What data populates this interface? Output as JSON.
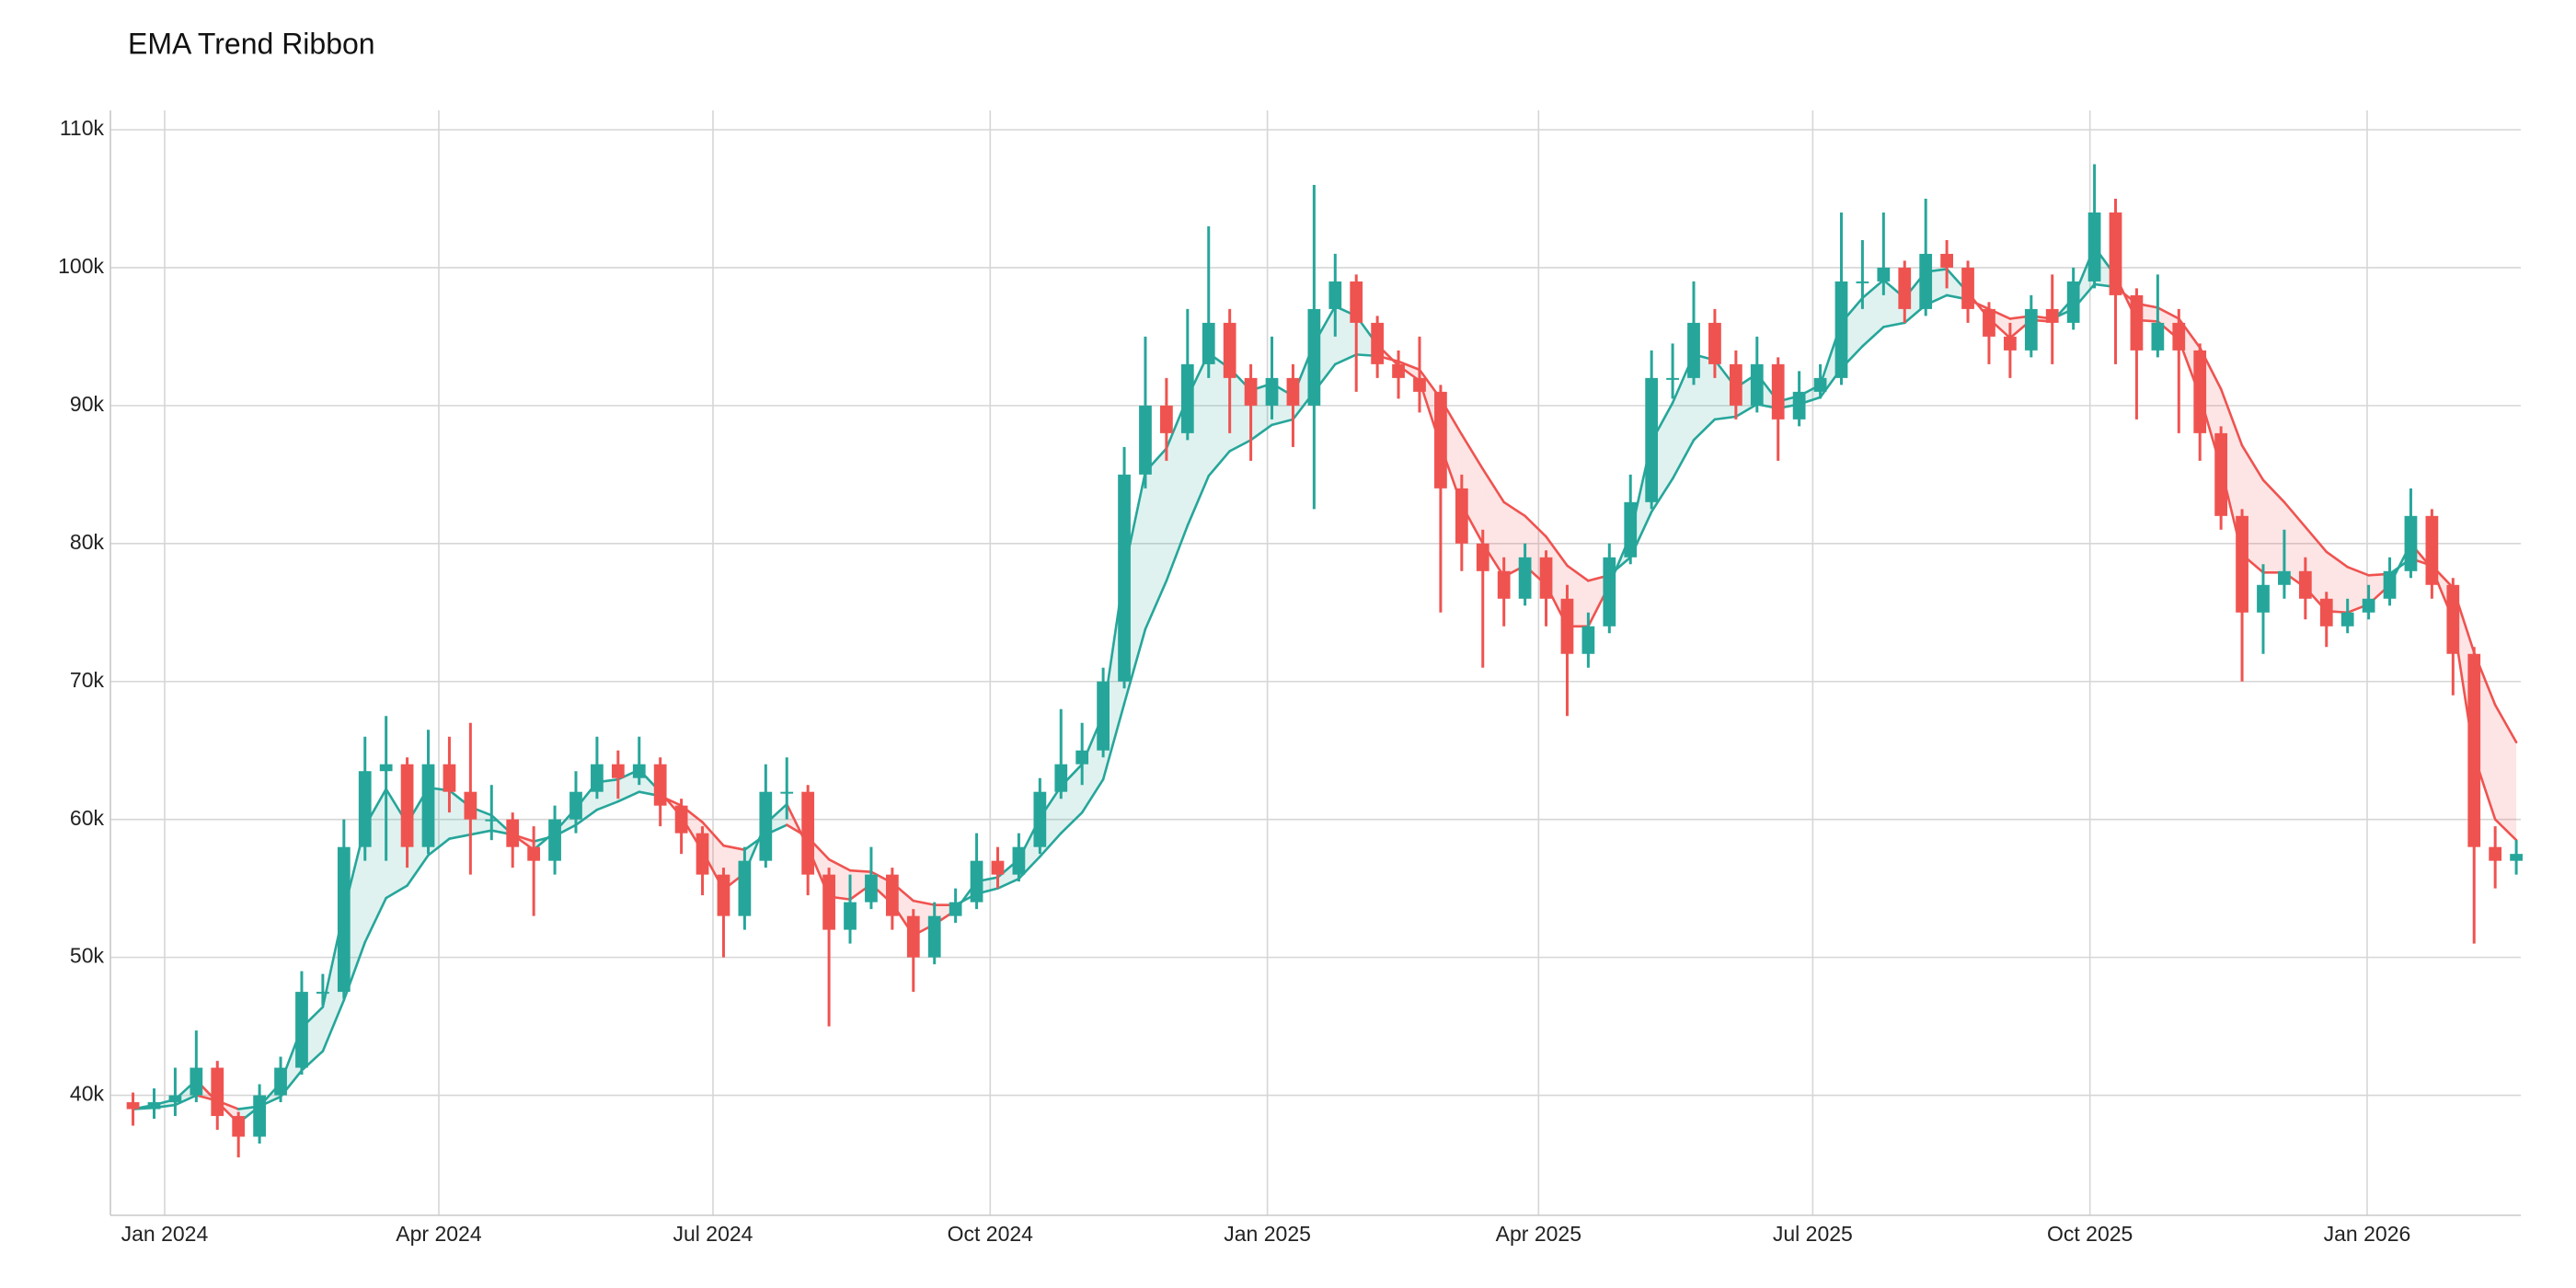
{
  "chart_data": {
    "type": "candlestick",
    "title": "EMA Trend Ribbon",
    "x": [
      "2023-12-18",
      "2023-12-25",
      "2024-01-01",
      "2024-01-08",
      "2024-01-15",
      "2024-01-22",
      "2024-01-29",
      "2024-02-05",
      "2024-02-12",
      "2024-02-19",
      "2024-02-26",
      "2024-03-04",
      "2024-03-11",
      "2024-03-18",
      "2024-03-25",
      "2024-04-01",
      "2024-04-08",
      "2024-04-15",
      "2024-04-22",
      "2024-04-29",
      "2024-05-06",
      "2024-05-13",
      "2024-05-20",
      "2024-05-27",
      "2024-06-03",
      "2024-06-10",
      "2024-06-17",
      "2024-06-24",
      "2024-07-01",
      "2024-07-08",
      "2024-07-15",
      "2024-07-22",
      "2024-07-29",
      "2024-08-05",
      "2024-08-12",
      "2024-08-19",
      "2024-08-26",
      "2024-09-02",
      "2024-09-09",
      "2024-09-16",
      "2024-09-23",
      "2024-09-30",
      "2024-10-07",
      "2024-10-14",
      "2024-10-21",
      "2024-10-28",
      "2024-11-04",
      "2024-11-11",
      "2024-11-18",
      "2024-11-25",
      "2024-12-02",
      "2024-12-09",
      "2024-12-16",
      "2024-12-23",
      "2024-12-30",
      "2025-01-06",
      "2025-01-13",
      "2025-01-20",
      "2025-01-27",
      "2025-02-03",
      "2025-02-10",
      "2025-02-17",
      "2025-02-24",
      "2025-03-03",
      "2025-03-10",
      "2025-03-17",
      "2025-03-24",
      "2025-03-31",
      "2025-04-07",
      "2025-04-14",
      "2025-04-21",
      "2025-04-28",
      "2025-05-05",
      "2025-05-12",
      "2025-05-19",
      "2025-05-26",
      "2025-06-02",
      "2025-06-09",
      "2025-06-16",
      "2025-06-23",
      "2025-06-30",
      "2025-07-07",
      "2025-07-14",
      "2025-07-21",
      "2025-07-28",
      "2025-08-04",
      "2025-08-11",
      "2025-08-18",
      "2025-08-25",
      "2025-09-01",
      "2025-09-08",
      "2025-09-15",
      "2025-09-22",
      "2025-09-29",
      "2025-10-06",
      "2025-10-13",
      "2025-10-20",
      "2025-10-27",
      "2025-11-03",
      "2025-11-10",
      "2025-11-17",
      "2025-11-24",
      "2025-12-01",
      "2025-12-08",
      "2025-12-15",
      "2025-12-22",
      "2025-12-29",
      "2026-01-05",
      "2026-01-12",
      "2026-01-19",
      "2026-01-26",
      "2026-02-02",
      "2026-02-09",
      "2026-02-16"
    ],
    "open": [
      39500,
      39000,
      39500,
      40000,
      42000,
      38500,
      37000,
      40000,
      42000,
      47500,
      47500,
      58000,
      63500,
      64000,
      58000,
      64000,
      62000,
      60000,
      60000,
      58000,
      57000,
      60000,
      62000,
      64000,
      63000,
      64000,
      61000,
      59000,
      56000,
      53000,
      57000,
      62000,
      62000,
      56000,
      52000,
      54000,
      56000,
      53000,
      50000,
      53000,
      54000,
      57000,
      56000,
      58000,
      62000,
      64000,
      65000,
      70000,
      85000,
      90000,
      88000,
      93000,
      96000,
      92000,
      90000,
      92000,
      90000,
      97000,
      99000,
      96000,
      93000,
      92000,
      91000,
      84000,
      80000,
      78000,
      76000,
      79000,
      76000,
      72000,
      74000,
      79000,
      83000,
      92000,
      92000,
      96000,
      93000,
      90000,
      93000,
      89000,
      91000,
      92000,
      99000,
      99000,
      100000,
      97000,
      101000,
      100000,
      97000,
      95000,
      94000,
      97000,
      96000,
      99000,
      104000,
      98000,
      94000,
      96000,
      94000,
      88000,
      82000,
      75000,
      77000,
      78000,
      76000,
      74000,
      75000,
      76000,
      78000,
      82000,
      77000,
      72000,
      58000,
      57000
    ],
    "high": [
      40200,
      40500,
      42000,
      44700,
      42500,
      38800,
      40800,
      42800,
      49000,
      48800,
      60000,
      66000,
      67500,
      64500,
      66500,
      66000,
      67000,
      62500,
      60500,
      59500,
      61000,
      63500,
      66000,
      65000,
      66000,
      64500,
      61500,
      59500,
      56500,
      58000,
      64000,
      64500,
      62500,
      56500,
      56000,
      58000,
      56500,
      53500,
      54000,
      55000,
      59000,
      58000,
      59000,
      63000,
      68000,
      67000,
      71000,
      87000,
      95000,
      92000,
      97000,
      103000,
      97000,
      93000,
      95000,
      93000,
      106000,
      101000,
      99500,
      96500,
      94000,
      95000,
      91500,
      85000,
      81000,
      79000,
      80000,
      79500,
      77000,
      75000,
      80000,
      85000,
      94000,
      94500,
      99000,
      97000,
      94000,
      95000,
      93500,
      92500,
      93000,
      104000,
      102000,
      104000,
      100500,
      105000,
      102000,
      100500,
      97500,
      96000,
      98000,
      99500,
      100000,
      107500,
      105000,
      98500,
      99500,
      97000,
      94500,
      88500,
      82500,
      78500,
      81000,
      79000,
      76500,
      76000,
      77000,
      79000,
      84000,
      82500,
      77500,
      72500,
      59500,
      58500
    ],
    "low": [
      37800,
      38300,
      38500,
      39500,
      37500,
      35500,
      36500,
      39500,
      41500,
      46500,
      47000,
      57000,
      57000,
      56500,
      57500,
      60500,
      56000,
      58500,
      56500,
      53000,
      56000,
      59000,
      61500,
      61500,
      62500,
      59500,
      57500,
      54500,
      50000,
      52000,
      56500,
      60000,
      54500,
      45000,
      51000,
      53500,
      52000,
      47500,
      49500,
      52500,
      53500,
      55000,
      55500,
      57500,
      61500,
      62500,
      64500,
      69500,
      84000,
      86000,
      87500,
      92000,
      88000,
      86000,
      89000,
      87000,
      82500,
      95000,
      91000,
      92000,
      90500,
      89500,
      75000,
      78000,
      71000,
      74000,
      75500,
      74000,
      67500,
      71000,
      73500,
      78500,
      82500,
      90500,
      91500,
      92000,
      89000,
      89500,
      86000,
      88500,
      90500,
      91500,
      97000,
      98000,
      96000,
      96500,
      98500,
      96000,
      93000,
      92000,
      93500,
      93000,
      95500,
      98500,
      93000,
      89000,
      93500,
      88000,
      86000,
      81000,
      70000,
      72000,
      76000,
      74500,
      72500,
      73500,
      74500,
      75500,
      77500,
      76000,
      69000,
      51000,
      55000,
      56000
    ],
    "close": [
      39000,
      39500,
      40000,
      42000,
      38500,
      37000,
      40000,
      42000,
      47500,
      47500,
      58000,
      63500,
      64000,
      58000,
      64000,
      62000,
      60000,
      60000,
      58000,
      57000,
      60000,
      62000,
      64000,
      63000,
      64000,
      61000,
      59000,
      56000,
      53000,
      57000,
      62000,
      62000,
      56000,
      52000,
      54000,
      56000,
      53000,
      50000,
      53000,
      54000,
      57000,
      56000,
      58000,
      62000,
      64000,
      65000,
      70000,
      85000,
      90000,
      88000,
      93000,
      96000,
      92000,
      90000,
      92000,
      90000,
      97000,
      99000,
      96000,
      93000,
      92000,
      91000,
      84000,
      80000,
      78000,
      76000,
      79000,
      76000,
      72000,
      74000,
      79000,
      83000,
      92000,
      92000,
      96000,
      93000,
      90000,
      93000,
      89000,
      91000,
      92000,
      99000,
      99000,
      100000,
      97000,
      101000,
      100000,
      97000,
      95000,
      94000,
      97000,
      96000,
      99000,
      104000,
      98000,
      94000,
      96000,
      94000,
      88000,
      82000,
      75000,
      77000,
      78000,
      76000,
      74000,
      75000,
      76000,
      78000,
      82000,
      77000,
      72000,
      58000,
      57000,
      57500
    ],
    "ema_fast": [
      39000,
      39300,
      39700,
      41100,
      39500,
      38000,
      39200,
      40900,
      44900,
      46400,
      53400,
      59500,
      62200,
      59700,
      62300,
      62100,
      60900,
      60300,
      58900,
      57800,
      59100,
      60800,
      62700,
      62900,
      63600,
      62000,
      60200,
      57700,
      54900,
      56100,
      59700,
      61100,
      58000,
      54400,
      54200,
      55300,
      53900,
      51600,
      52400,
      53400,
      55500,
      55800,
      57100,
      60100,
      62400,
      64000,
      67600,
      78000,
      85200,
      86900,
      90600,
      93800,
      92700,
      91100,
      91600,
      90700,
      94500,
      97200,
      96500,
      94400,
      92900,
      91800,
      87100,
      82800,
      80000,
      77600,
      78400,
      77000,
      74000,
      74000,
      77000,
      80600,
      87400,
      90200,
      93700,
      93300,
      91300,
      92300,
      90300,
      90700,
      91500,
      96000,
      97800,
      99100,
      97800,
      99700,
      99900,
      98200,
      96300,
      94900,
      96200,
      96100,
      97800,
      101500,
      99400,
      96200,
      96100,
      94800,
      90700,
      85500,
      79200,
      77900,
      77900,
      76800,
      75100,
      75000,
      75600,
      77000,
      80000,
      78200,
      74500,
      64600,
      60000,
      58500
    ],
    "ema_slow": [
      39000,
      39100,
      39300,
      40000,
      39600,
      39000,
      39200,
      39900,
      41800,
      43200,
      46900,
      51100,
      54300,
      55200,
      57400,
      58600,
      58900,
      59200,
      58900,
      58400,
      58800,
      59600,
      60700,
      61300,
      62000,
      61700,
      61000,
      59800,
      58100,
      57800,
      58900,
      59600,
      58700,
      57100,
      56300,
      56200,
      55400,
      54100,
      53800,
      53800,
      54600,
      55000,
      55700,
      57300,
      59000,
      60500,
      62900,
      68400,
      73800,
      77300,
      81300,
      84900,
      86700,
      87500,
      88600,
      89000,
      91000,
      93000,
      93700,
      93600,
      93200,
      92600,
      90500,
      87900,
      85400,
      83000,
      82000,
      80500,
      78400,
      77300,
      77700,
      79000,
      82300,
      84700,
      87500,
      89000,
      89200,
      90100,
      89800,
      90100,
      90600,
      92700,
      94300,
      95700,
      96000,
      97300,
      98000,
      97700,
      97000,
      96300,
      96500,
      96300,
      97000,
      98800,
      98600,
      97400,
      97100,
      96300,
      94200,
      91200,
      87100,
      84600,
      83000,
      81200,
      79400,
      78300,
      77700,
      77800,
      78900,
      78400,
      76800,
      72100,
      68300,
      65600
    ],
    "up_color": "#26a69a",
    "down_color": "#ef5350",
    "xlim": [
      "2023-12-14",
      "2026-02-21"
    ],
    "xticks": [
      {
        "value": "2024-01-01",
        "label": "Jan 2024"
      },
      {
        "value": "2024-04-01",
        "label": "Apr 2024"
      },
      {
        "value": "2024-07-01",
        "label": "Jul 2024"
      },
      {
        "value": "2024-10-01",
        "label": "Oct 2024"
      },
      {
        "value": "2025-01-01",
        "label": "Jan 2025"
      },
      {
        "value": "2025-04-01",
        "label": "Apr 2025"
      },
      {
        "value": "2025-07-01",
        "label": "Jul 2025"
      },
      {
        "value": "2025-10-01",
        "label": "Oct 2025"
      },
      {
        "value": "2026-01-01",
        "label": "Jan 2026"
      }
    ],
    "ylim": [
      31300,
      111400
    ],
    "yticks": [
      {
        "value": 40000,
        "label": "40k"
      },
      {
        "value": 50000,
        "label": "50k"
      },
      {
        "value": 60000,
        "label": "60k"
      },
      {
        "value": 70000,
        "label": "70k"
      },
      {
        "value": 80000,
        "label": "80k"
      },
      {
        "value": 90000,
        "label": "90k"
      },
      {
        "value": 100000,
        "label": "100k"
      },
      {
        "value": 110000,
        "label": "110k"
      }
    ],
    "grid": true
  }
}
